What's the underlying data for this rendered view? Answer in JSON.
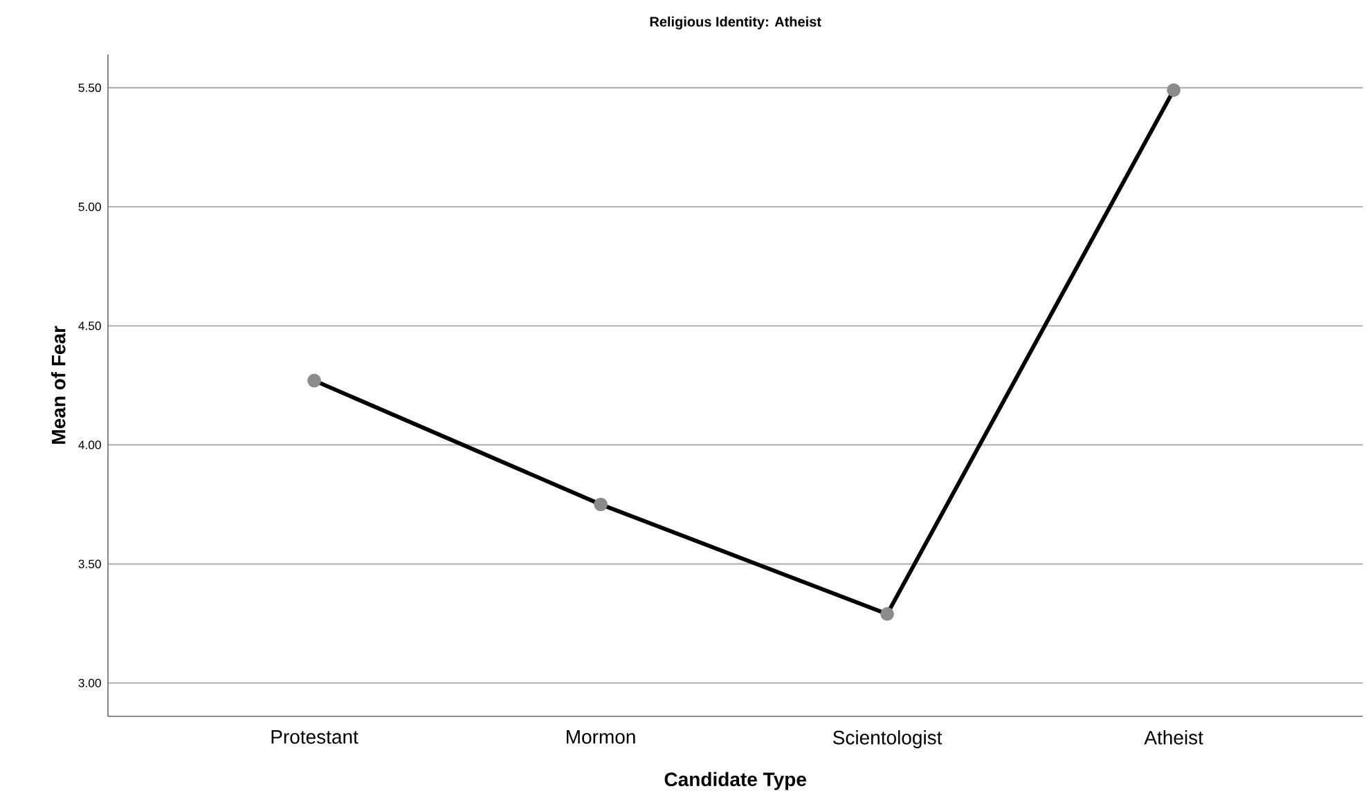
{
  "chart_data": {
    "type": "line",
    "title": "Religious Identity: Atheist",
    "xlabel": "Candidate Type",
    "ylabel": "Mean of Fear",
    "categories": [
      "Protestant",
      "Mormon",
      "Scientologist",
      "Atheist"
    ],
    "series": [
      {
        "color": "#000000",
        "values": [
          4.27,
          3.75,
          3.29,
          5.49
        ]
      }
    ],
    "ylim": [
      2.86,
      5.64
    ],
    "yticks": [
      {
        "value": 3.0,
        "label": "3.00"
      },
      {
        "value": 3.5,
        "label": "3.50"
      },
      {
        "value": 4.0,
        "label": "4.00"
      },
      {
        "value": 4.5,
        "label": "4.50"
      },
      {
        "value": 5.0,
        "label": "5.00"
      },
      {
        "value": 5.5,
        "label": "5.50"
      }
    ],
    "grid": "y",
    "marker": "circle",
    "line_style": "solid"
  }
}
